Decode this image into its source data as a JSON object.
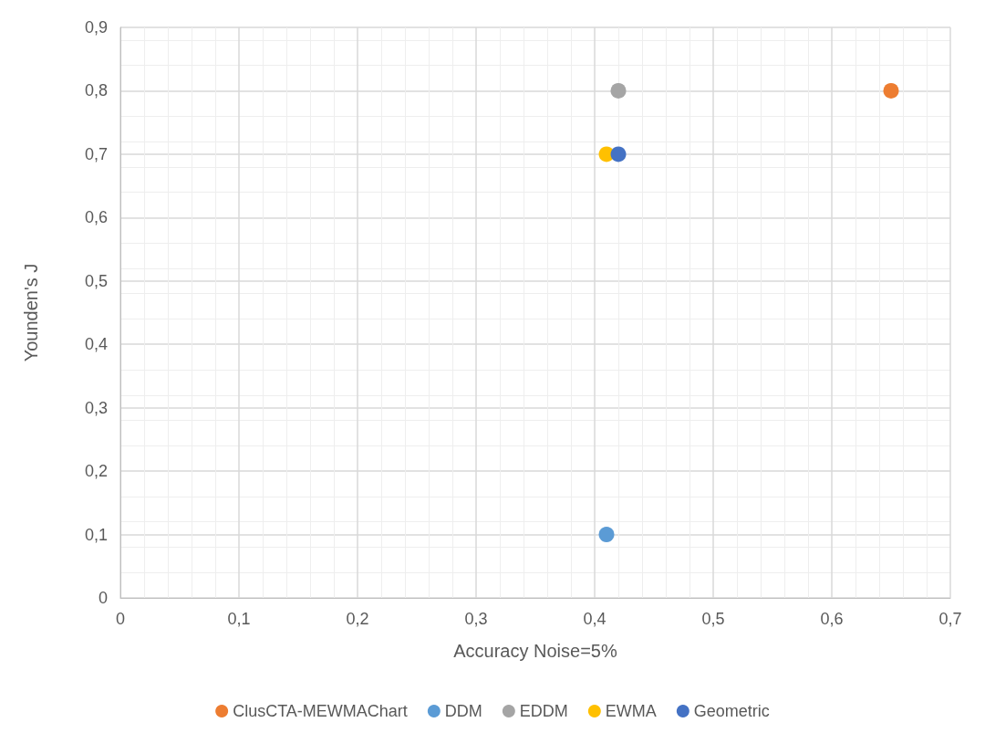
{
  "chart_data": {
    "type": "scatter",
    "xlabel": "Accuracy Noise=5%",
    "ylabel": "Younden's J",
    "series": [
      {
        "name": "ClusCTA-MEWMAChart",
        "color": "#ed7d31",
        "x": [
          0.65
        ],
        "values": [
          0.8
        ]
      },
      {
        "name": "DDM",
        "color": "#5b9bd5",
        "x": [
          0.41
        ],
        "values": [
          0.1
        ]
      },
      {
        "name": "EDDM",
        "color": "#a5a5a5",
        "x": [
          0.42
        ],
        "values": [
          0.8
        ]
      },
      {
        "name": "EWMA",
        "color": "#ffc000",
        "x": [
          0.41
        ],
        "values": [
          0.7
        ]
      },
      {
        "name": "Geometric",
        "color": "#4472c4",
        "x": [
          0.42
        ],
        "values": [
          0.7
        ]
      }
    ],
    "xlim": [
      0,
      0.7
    ],
    "xticks": [
      0,
      {
        "value": 0.1,
        "label": "0,1"
      },
      {
        "value": 0.2,
        "label": "0,2"
      },
      {
        "value": 0.3,
        "label": "0,3"
      },
      {
        "value": 0.4,
        "label": "0,4"
      },
      {
        "value": 0.5,
        "label": "0,5"
      },
      {
        "value": 0.6,
        "label": "0,6"
      },
      {
        "value": 0.7,
        "label": "0,7"
      }
    ],
    "ylim": [
      0,
      0.9
    ],
    "yticks": [
      0,
      {
        "value": 0.1,
        "label": "0,1"
      },
      {
        "value": 0.2,
        "label": "0,2"
      },
      {
        "value": 0.3,
        "label": "0,3"
      },
      {
        "value": 0.4,
        "label": "0,4"
      },
      {
        "value": 0.5,
        "label": "0,5"
      },
      {
        "value": 0.6,
        "label": "0,6"
      },
      {
        "value": 0.7,
        "label": "0,7"
      },
      {
        "value": 0.8,
        "label": "0,8"
      },
      {
        "value": 0.9,
        "label": "0,9"
      }
    ],
    "grid": true,
    "legend": "bottom",
    "marker": "circle"
  }
}
